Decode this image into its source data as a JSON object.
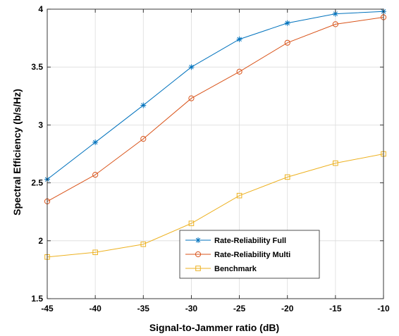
{
  "chart_data": {
    "type": "line",
    "title": "",
    "xlabel": "Signal-to-Jammer ratio (dB)",
    "ylabel": "Spectral Efficiency (b/s/Hz)",
    "x": [
      -45,
      -40,
      -35,
      -30,
      -25,
      -20,
      -15,
      -10
    ],
    "xlim": [
      -45,
      -10
    ],
    "ylim": [
      1.5,
      4
    ],
    "xticks": [
      "-45",
      "-40",
      "-35",
      "-30",
      "-25",
      "-20",
      "-15",
      "-10"
    ],
    "yticks": [
      "1.5",
      "2",
      "2.5",
      "3",
      "3.5",
      "4"
    ],
    "grid": true,
    "legend_position": "bottom-center",
    "series": [
      {
        "name": "Rate-Reliability Full",
        "marker": "asterisk",
        "color": "#0072BD",
        "values": [
          2.53,
          2.85,
          3.17,
          3.5,
          3.74,
          3.88,
          3.96,
          3.98
        ]
      },
      {
        "name": "Rate-Reliability Multi",
        "marker": "circle",
        "color": "#D95319",
        "values": [
          2.34,
          2.57,
          2.88,
          3.23,
          3.46,
          3.71,
          3.87,
          3.93
        ]
      },
      {
        "name": "Benchmark",
        "marker": "square",
        "color": "#EDB120",
        "values": [
          1.86,
          1.9,
          1.97,
          2.15,
          2.39,
          2.55,
          2.67,
          2.75
        ]
      }
    ]
  }
}
